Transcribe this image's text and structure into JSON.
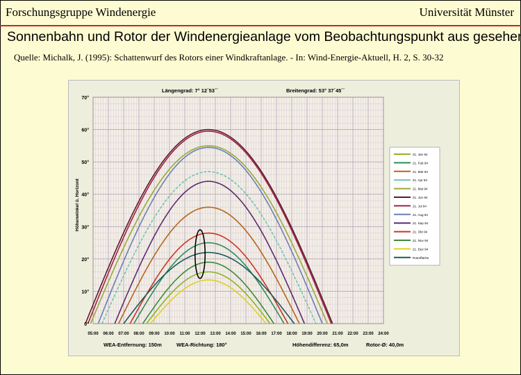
{
  "header": {
    "left": "Forschungsgruppe Windenergie",
    "right": "Universität Münster"
  },
  "title": "Sonnenbahn und Rotor der Windenergieanlage vom Beobachtungspunkt aus gesehen",
  "source": "Quelle: Michalk, J. (1995): Schattenwurf des Rotors einer Windkraftanlage. - In: Wind-Energie-Aktuell, H. 2, S. 30-32",
  "colors": {
    "background": "#fdfbd2",
    "header_rule": "#cc2222",
    "panel": "#eeeedd",
    "grid_minor": "#d6c9d6",
    "grid_major": "#b7a6b7",
    "rotor": "#000000"
  },
  "chart_data": {
    "type": "line",
    "top_labels": {
      "longitude": "Längengrad:  7° 12´53´´",
      "latitude": "Breitengrad:  53° 37´45´´"
    },
    "bottom_labels": {
      "distance": "WEA-Entfernung: 150m",
      "direction": "WEA-Richtung: 180°",
      "height_diff": "Höhendifferenz: 65,0m",
      "rotor_diameter": "Rotor-Ø: 40,0m"
    },
    "ylabel": "Höhenwinkel ü. Horizont",
    "ylim": [
      0,
      70
    ],
    "yticks": [
      "0°",
      "10°",
      "20°",
      "30°",
      "40°",
      "50°",
      "60°",
      "70°"
    ],
    "xlim": [
      "05:00",
      "24:00"
    ],
    "xticks": [
      "05:00",
      "06:00",
      "07:00",
      "08:00",
      "09:00",
      "10:00",
      "11:00",
      "12:00",
      "13:00",
      "14:00",
      "15:00",
      "16:00",
      "17:00",
      "18:00",
      "19:00",
      "20:00",
      "21:00",
      "22:00",
      "23:00",
      "24:00"
    ],
    "grid": true,
    "legend_position": "right",
    "series": [
      {
        "name": "21. Jan 94",
        "color": "#8db324",
        "rise": "08:30",
        "set": "16:35",
        "peak_time": "12:33",
        "peak": 16,
        "dash": false
      },
      {
        "name": "21. Feb 94",
        "color": "#2e8b57",
        "rise": "07:40",
        "set": "17:30",
        "peak_time": "12:33",
        "peak": 25,
        "dash": false
      },
      {
        "name": "21. Mär 94",
        "color": "#b5651d",
        "rise": "06:40",
        "set": "18:30",
        "peak_time": "12:33",
        "peak": 36,
        "dash": false
      },
      {
        "name": "21. Apr 94",
        "color": "#6cc5b0",
        "rise": "05:35",
        "set": "19:35",
        "peak_time": "12:33",
        "peak": 47,
        "dash": true
      },
      {
        "name": "21. Mai 94",
        "color": "#9aa83a",
        "rise": "04:50",
        "set": "20:20",
        "peak_time": "12:33",
        "peak": 55,
        "dash": false
      },
      {
        "name": "21. Jun 94",
        "color": "#5a1a2e",
        "rise": "04:30",
        "set": "20:40",
        "peak_time": "12:33",
        "peak": 60,
        "dash": false
      },
      {
        "name": "21. Jul 94",
        "color": "#a02040",
        "rise": "04:40",
        "set": "20:35",
        "peak_time": "12:33",
        "peak": 59.5,
        "dash": false
      },
      {
        "name": "21. Aug 94",
        "color": "#6a7fb5",
        "rise": "05:20",
        "set": "20:00",
        "peak_time": "12:33",
        "peak": 54.5,
        "dash": false
      },
      {
        "name": "21. Sep 94",
        "color": "#5b2a6e",
        "rise": "06:25",
        "set": "18:50",
        "peak_time": "12:33",
        "peak": 44,
        "dash": false
      },
      {
        "name": "21. Okt 94",
        "color": "#cc3322",
        "rise": "07:25",
        "set": "17:45",
        "peak_time": "12:33",
        "peak": 28,
        "dash": false
      },
      {
        "name": "21. Nov 94",
        "color": "#3a8a3a",
        "rise": "08:15",
        "set": "16:50",
        "peak_time": "12:33",
        "peak": 19,
        "dash": false
      },
      {
        "name": "21. Dez 94",
        "color": "#e0d020",
        "rise": "08:45",
        "set": "16:20",
        "peak_time": "12:33",
        "peak": 13.5,
        "dash": false
      },
      {
        "name": "Rotorfläche",
        "color": "#1a5a5a",
        "rise": "07:00",
        "set": "18:10",
        "peak_time": "12:33",
        "peak": 22,
        "dash": false
      }
    ],
    "rotor": {
      "center_time": "12:00",
      "center_alt": 21.5,
      "half_width_hours": 0.33,
      "half_height_deg": 7.5
    }
  }
}
